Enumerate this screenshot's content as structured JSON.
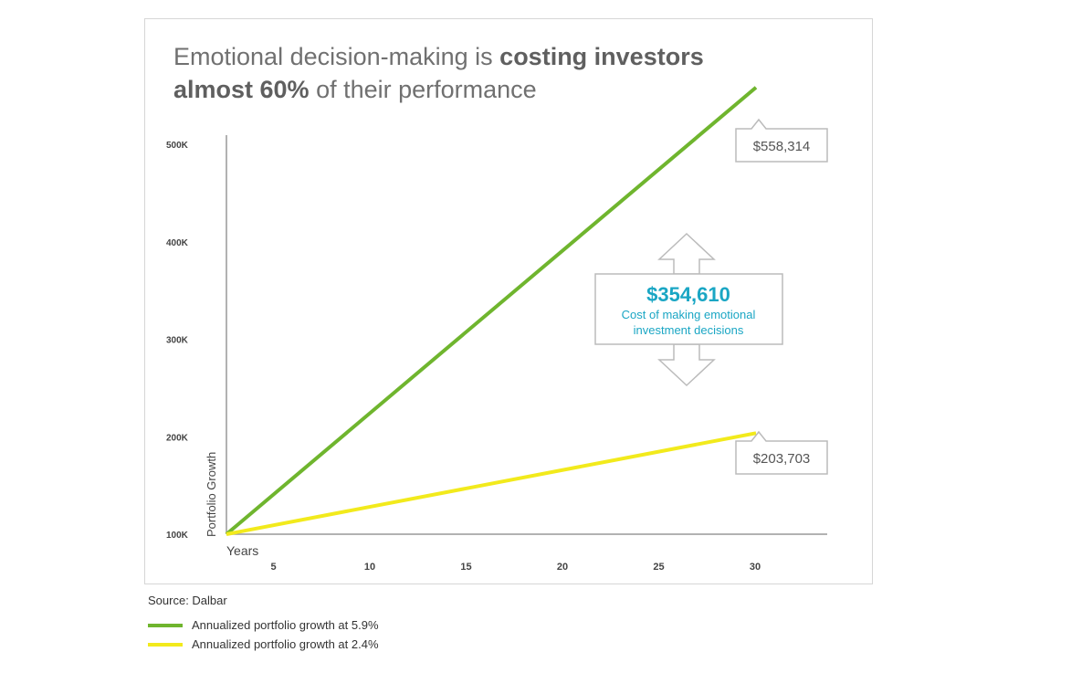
{
  "title": {
    "part1": "Emotional decision-making is ",
    "bold1": "costing investors",
    "bold2": "almost 60%",
    "part2": " of their performance"
  },
  "chart_data": {
    "type": "line",
    "title": "Emotional decision-making is costing investors almost 60% of their performance",
    "xlabel": "Years",
    "ylabel": "Portfolio Growth",
    "x_ticks": [
      "5",
      "10",
      "15",
      "20",
      "25",
      "30"
    ],
    "y_ticks": [
      "100K",
      "200K",
      "300K",
      "400K",
      "500K"
    ],
    "xlim": [
      0,
      30
    ],
    "ylim": [
      100000,
      500000
    ],
    "series": [
      {
        "name": "Annualized portfolio growth at 5.9%",
        "color": "#6fb52e",
        "x": [
          0,
          30
        ],
        "y": [
          100000,
          558314
        ],
        "end_label": "$558,314"
      },
      {
        "name": "Annualized portfolio growth at 2.4%",
        "color": "#f2ea1c",
        "x": [
          0,
          30
        ],
        "y": [
          100000,
          203703
        ],
        "end_label": "$203,703"
      }
    ],
    "annotation": {
      "value": "$354,610",
      "text_line1": "Cost of making emotional",
      "text_line2": "investment decisions",
      "color": "#1aa6c4"
    },
    "legend_position": "bottom-left",
    "grid": false
  },
  "source": "Source: Dalbar"
}
